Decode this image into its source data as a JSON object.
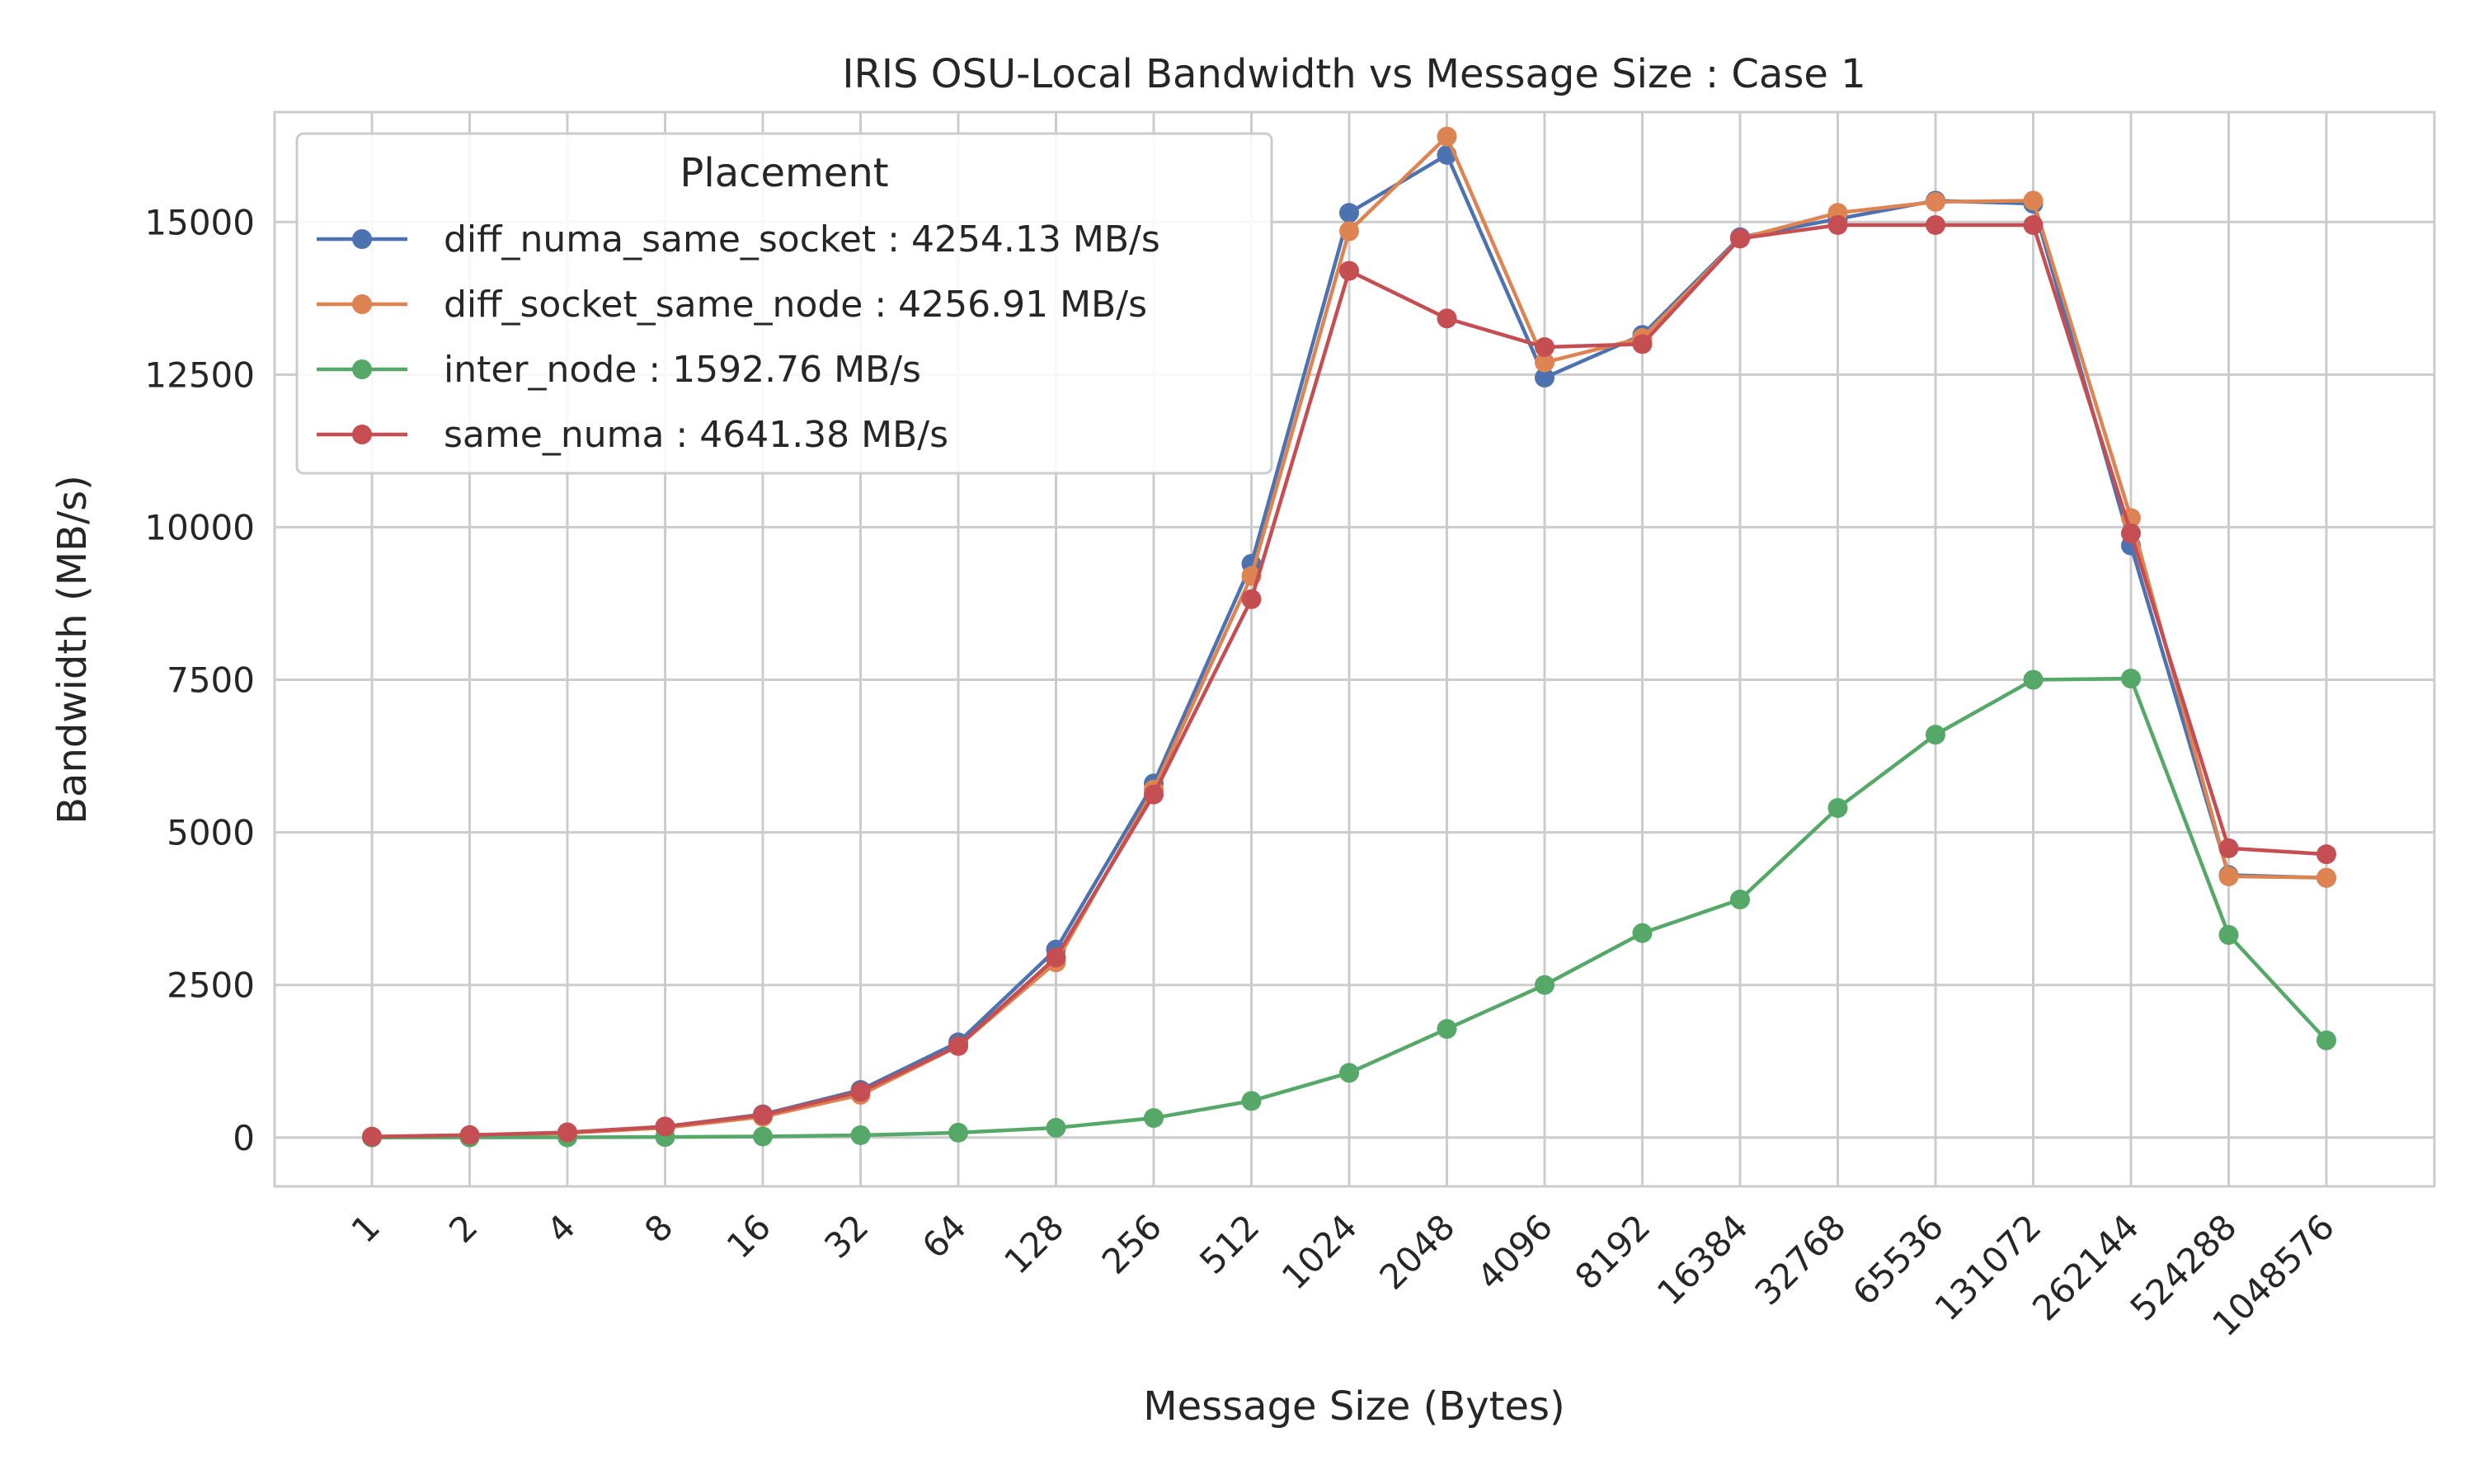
{
  "chart_data": {
    "type": "line",
    "title": "IRIS OSU-Local Bandwidth vs Message Size : Case 1",
    "xlabel": "Message Size (Bytes)",
    "ylabel": "Bandwidth (MB/s)",
    "categories": [
      "1",
      "2",
      "4",
      "8",
      "16",
      "32",
      "64",
      "128",
      "256",
      "512",
      "1024",
      "2048",
      "4096",
      "8192",
      "16384",
      "32768",
      "65536",
      "131072",
      "262144",
      "524288",
      "1048576"
    ],
    "ylim": [
      -800,
      16800
    ],
    "yticks": [
      0,
      2500,
      5000,
      7500,
      10000,
      12500,
      15000
    ],
    "ytick_labels": [
      "0",
      "2500",
      "5000",
      "7500",
      "10000",
      "12500",
      "15000"
    ],
    "grid": true,
    "legend": {
      "title": "Placement",
      "position": "top-left"
    },
    "series": [
      {
        "name": "diff_numa_same_socket : 4254.13 MB/s",
        "color": "#4c72b0",
        "values": [
          10,
          25,
          80,
          180,
          380,
          780,
          1560,
          3080,
          5800,
          9400,
          15150,
          16100,
          12450,
          13150,
          14750,
          15050,
          15350,
          15300,
          9700,
          4300,
          4254.13
        ]
      },
      {
        "name": "diff_socket_same_node : 4256.91 MB/s",
        "color": "#dd8452",
        "values": [
          10,
          22,
          75,
          160,
          340,
          700,
          1500,
          2870,
          5700,
          9200,
          14850,
          16400,
          12700,
          13100,
          14730,
          15150,
          15330,
          15350,
          10150,
          4280,
          4256.91
        ]
      },
      {
        "name": "inter_node : 1592.76 MB/s",
        "color": "#55a868",
        "values": [
          1,
          2,
          4,
          9,
          18,
          38,
          80,
          160,
          320,
          600,
          1060,
          1780,
          2500,
          3350,
          3900,
          5400,
          6600,
          7500,
          7520,
          3320,
          1592.76
        ]
      },
      {
        "name": "same_numa : 4641.38 MB/s",
        "color": "#c44e52",
        "values": [
          15,
          40,
          85,
          180,
          370,
          750,
          1500,
          2950,
          5620,
          8820,
          14200,
          13420,
          12950,
          13000,
          14730,
          14950,
          14950,
          14950,
          9900,
          4740,
          4641.38
        ]
      }
    ]
  }
}
